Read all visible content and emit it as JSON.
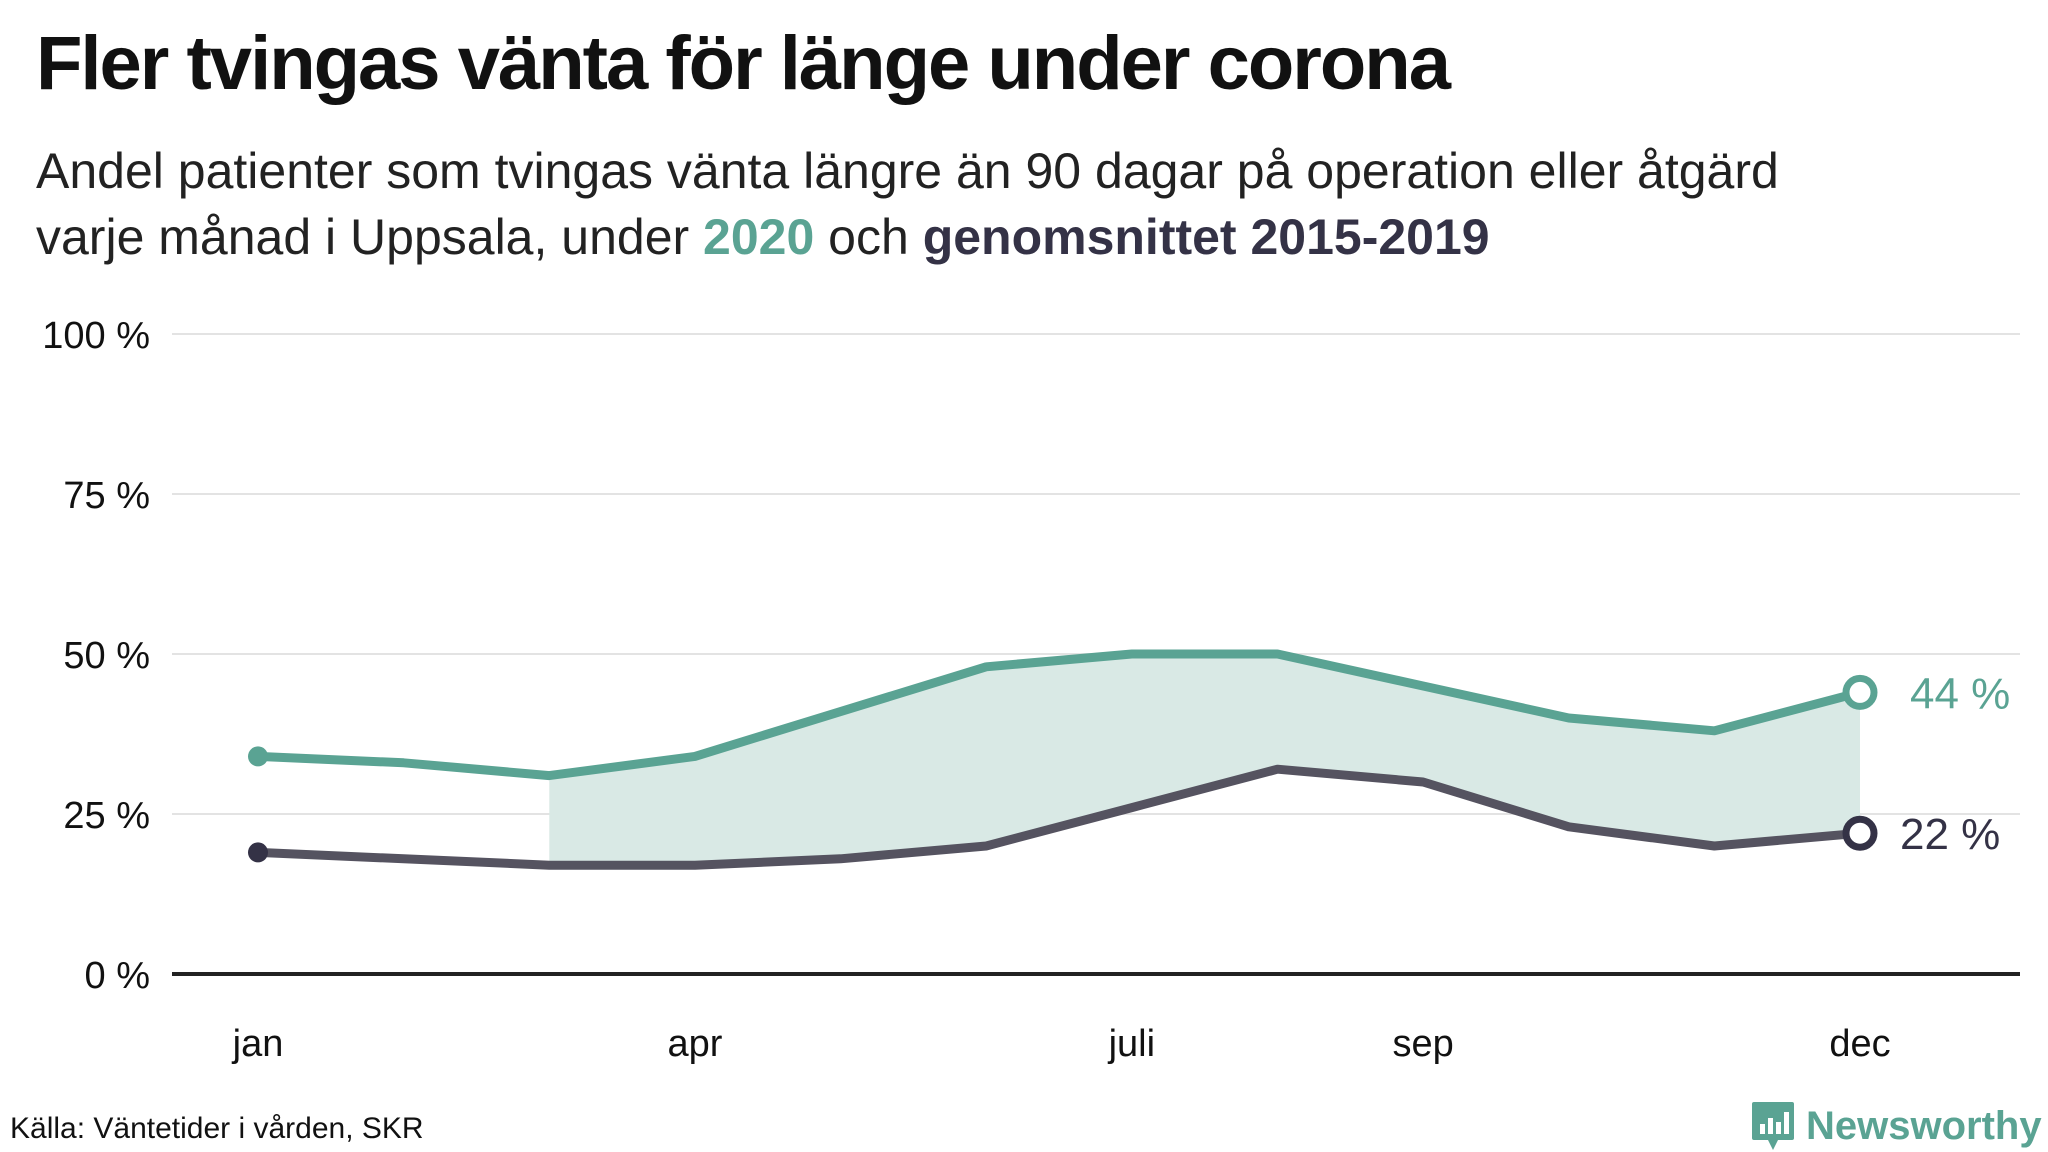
{
  "title": "Fler tvingas vänta för länge under corona",
  "subtitle": {
    "line1": "Andel patienter som tvingas vänta längre än 90 dagar på operation eller åtgärd",
    "line2_prefix": "varje månad i Uppsala, under ",
    "line2_hl1": "2020",
    "line2_mid": " och ",
    "line2_hl2": "genomsnittet 2015-2019"
  },
  "source": "Källa: Väntetider i vården, SKR",
  "logo": {
    "text": "Newsworthy",
    "icon": "newsworthy-logo-icon"
  },
  "colors": {
    "series2020": "#5aa393",
    "average": "#555360",
    "fill": "#d9e9e5",
    "axis": "#222222",
    "grid": "#e3e3e3"
  },
  "chart_data": {
    "type": "line",
    "x": [
      "jan",
      "feb",
      "mar",
      "apr",
      "maj",
      "jun",
      "juli",
      "aug",
      "sep",
      "okt",
      "nov",
      "dec"
    ],
    "xtick_labels": [
      "jan",
      "apr",
      "juli",
      "sep",
      "dec"
    ],
    "ylim": [
      0,
      100
    ],
    "yticks": [
      0,
      25,
      50,
      75,
      100
    ],
    "ytick_labels": [
      "0 %",
      "25 %",
      "50 %",
      "75 %",
      "100 %"
    ],
    "series": [
      {
        "name": "2020",
        "color": "#5aa393",
        "values": [
          34,
          33,
          31,
          34,
          41,
          48,
          50,
          50,
          45,
          40,
          38,
          44
        ],
        "end_label": "44 %"
      },
      {
        "name": "genomsnittet 2015-2019",
        "color": "#555360",
        "values": [
          19,
          18,
          17,
          17,
          18,
          20,
          26,
          32,
          30,
          23,
          20,
          22
        ],
        "end_label": "22 %"
      }
    ],
    "shaded_from": "mar",
    "grid": true
  }
}
